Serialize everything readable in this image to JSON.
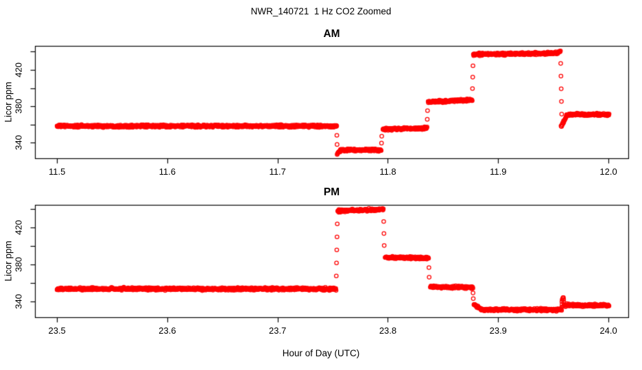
{
  "title": "NWR_140721  1 Hz CO2 Zoomed",
  "xlabel": "Hour of Day (UTC)",
  "point_color": "#ff0000",
  "chart_data": [
    {
      "type": "scatter",
      "title": "AM",
      "ylabel": "Licor ppm",
      "marker": "open-circle",
      "sample_rate_hz": 1,
      "grid": false,
      "legend": "none",
      "xlim": [
        11.48,
        12.018
      ],
      "ylim": [
        323,
        446.3
      ],
      "xticks": [
        {
          "value": 11.5,
          "label": "11.5"
        },
        {
          "value": 11.6,
          "label": "11.6"
        },
        {
          "value": 11.7,
          "label": "11.7"
        },
        {
          "value": 11.8,
          "label": "11.8"
        },
        {
          "value": 11.9,
          "label": "11.9"
        },
        {
          "value": 12.0,
          "label": "12.0"
        }
      ],
      "yticks": [
        {
          "value": 340,
          "label": "340"
        },
        {
          "value": 360,
          "label": ""
        },
        {
          "value": 380,
          "label": "380"
        },
        {
          "value": 400,
          "label": ""
        },
        {
          "value": 420,
          "label": "420"
        },
        {
          "value": 440,
          "label": ""
        }
      ],
      "segments": [
        {
          "t0": 11.5,
          "t1": 11.7535,
          "v0": 358.3,
          "v1": 358.3,
          "desc": "ambient baseline ~358 ppm"
        },
        {
          "t0": 11.754,
          "t1": 11.757,
          "v0": 328.0,
          "v1": 331.5,
          "desc": "entry dip of low step"
        },
        {
          "t0": 11.757,
          "t1": 11.794,
          "v0": 332.0,
          "v1": 332.0,
          "desc": "low cal step ~332 ppm"
        },
        {
          "t0": 11.7955,
          "t1": 11.8355,
          "v0": 354.8,
          "v1": 356.2,
          "desc": "cal step ~355 ppm"
        },
        {
          "t0": 11.8365,
          "t1": 11.8765,
          "v0": 384.8,
          "v1": 387.0,
          "desc": "cal step ~386 ppm"
        },
        {
          "t0": 11.8775,
          "t1": 11.954,
          "v0": 437.0,
          "v1": 438.2,
          "desc": "high cal step ~438 ppm"
        },
        {
          "t0": 11.954,
          "t1": 11.9565,
          "v0": 438.5,
          "v1": 441.0,
          "desc": "bump before drop"
        },
        {
          "t0": 11.957,
          "t1": 11.962,
          "v0": 357.5,
          "v1": 369.0,
          "desc": "post-drop recovery"
        },
        {
          "t0": 11.962,
          "t1": 12.0005,
          "v0": 371.0,
          "v1": 371.0,
          "desc": "final step ~371 ppm"
        }
      ]
    },
    {
      "type": "scatter",
      "title": "PM",
      "ylabel": "Licor ppm",
      "marker": "open-circle",
      "sample_rate_hz": 1,
      "grid": false,
      "legend": "none",
      "xlim": [
        23.48,
        24.018
      ],
      "ylim": [
        322.9,
        444.5
      ],
      "xticks": [
        {
          "value": 23.5,
          "label": "23.5"
        },
        {
          "value": 23.6,
          "label": "23.6"
        },
        {
          "value": 23.7,
          "label": "23.7"
        },
        {
          "value": 23.8,
          "label": "23.8"
        },
        {
          "value": 23.9,
          "label": "23.9"
        },
        {
          "value": 24.0,
          "label": "24.0"
        }
      ],
      "yticks": [
        {
          "value": 340,
          "label": "340"
        },
        {
          "value": 360,
          "label": ""
        },
        {
          "value": 380,
          "label": "380"
        },
        {
          "value": 400,
          "label": ""
        },
        {
          "value": 420,
          "label": "420"
        },
        {
          "value": 440,
          "label": ""
        }
      ],
      "segments": [
        {
          "t0": 23.5,
          "t1": 23.753,
          "v0": 353.5,
          "v1": 353.5,
          "desc": "ambient baseline ~353 ppm"
        },
        {
          "t0": 23.7545,
          "t1": 23.796,
          "v0": 438.0,
          "v1": 439.5,
          "desc": "high cal step ~439 ppm"
        },
        {
          "t0": 23.7975,
          "t1": 23.837,
          "v0": 387.5,
          "v1": 387.0,
          "desc": "cal step ~387 ppm"
        },
        {
          "t0": 23.8385,
          "t1": 23.877,
          "v0": 355.8,
          "v1": 355.2,
          "desc": "cal step ~355 ppm"
        },
        {
          "t0": 23.878,
          "t1": 23.8845,
          "v0": 337.0,
          "v1": 332.0,
          "desc": "descent tail into low step"
        },
        {
          "t0": 23.8845,
          "t1": 23.9575,
          "v0": 331.0,
          "v1": 331.0,
          "desc": "low step ~331 ppm"
        },
        {
          "t0": 23.9578,
          "t1": 23.9592,
          "v0": 340.0,
          "v1": 345.0,
          "desc": "transition spike ~345 ppm"
        },
        {
          "t0": 23.9597,
          "t1": 24.0005,
          "v0": 336.0,
          "v1": 335.5,
          "desc": "final step ~336 ppm"
        }
      ]
    }
  ]
}
